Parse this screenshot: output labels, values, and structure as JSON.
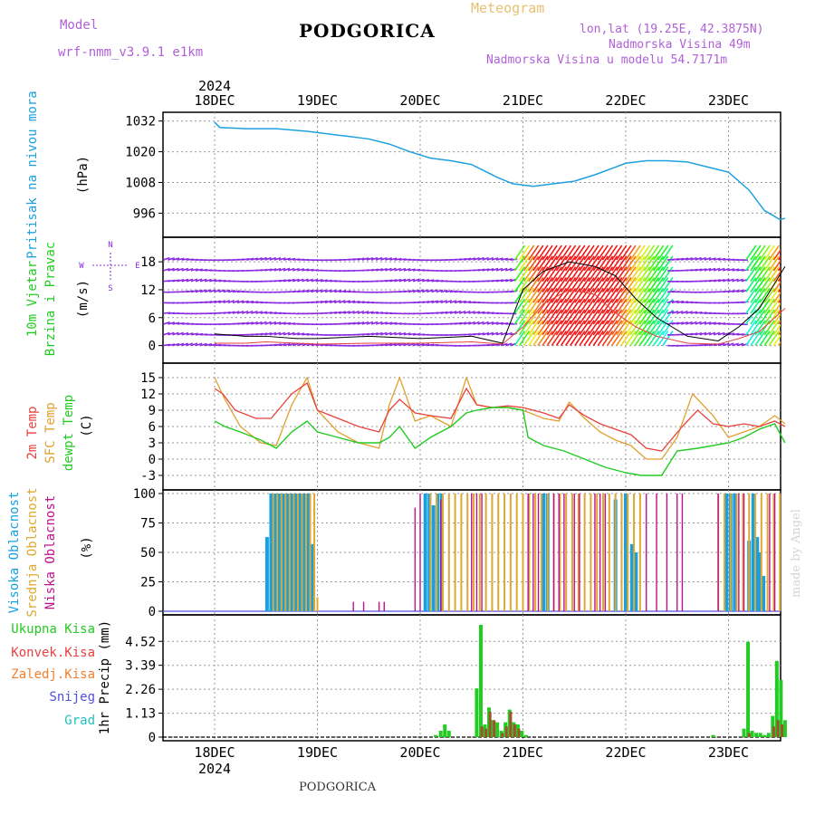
{
  "header": {
    "model_label": "Model",
    "model_name": "wrf-nmm_v3.9.1 e1km",
    "station_title": "PODGORICA",
    "product": "Meteogram",
    "lonlat": "lon,lat (19.25E, 42.3875N)",
    "elevation": "Nadmorska Visina 49m",
    "model_elevation": "Nadmorska Visina u modelu 54.7171m"
  },
  "footer_station": "PODGORICA",
  "watermark": "made by Angel",
  "colors": {
    "pressure": "#1ea0e0",
    "temp2m": "#e8413c",
    "sfc": "#e0a030",
    "dewpt": "#22cc22",
    "high_cloud": "#18a0e0",
    "mid_cloud": "#e0a830",
    "low_cloud": "#c0108c",
    "total_precip": "#22cc22",
    "conv_precip": "#e84040",
    "frozen": "#f08030",
    "snow": "#5050e0",
    "hail": "#22c0c0",
    "wind_purple": "#8a2be2"
  },
  "time_axis": {
    "year": "2024",
    "days": [
      "18DEC",
      "19DEC",
      "20DEC",
      "21DEC",
      "22DEC",
      "23DEC"
    ]
  },
  "chart_data": [
    {
      "type": "line",
      "name": "pressure",
      "ylabel_lines": [
        "Pritisak na nivou mora",
        "(hPa)"
      ],
      "yticks": [
        996,
        1008,
        1020,
        1032
      ],
      "ylim": [
        988,
        1034
      ],
      "series": [
        {
          "name": "Pritisak na nivou mora",
          "x": [
            0,
            0.05,
            0.3,
            0.45,
            0.6,
            0.9,
            1.0,
            1.2,
            1.5,
            1.7,
            1.9,
            2.1,
            2.3,
            2.5,
            2.6,
            2.75,
            2.9,
            3.1,
            3.3,
            3.5,
            3.7,
            3.9,
            4.0,
            4.2,
            4.4,
            4.6,
            4.8,
            5.0,
            5.2,
            5.35,
            5.5,
            5.55
          ],
          "y": [
            1031.5,
            1029.5,
            1029,
            1029,
            1029,
            1028,
            1027.5,
            1026.5,
            1025,
            1023,
            1020,
            1017.5,
            1016.5,
            1015,
            1013,
            1010,
            1007.5,
            1006.5,
            1007.5,
            1008.5,
            1011,
            1014,
            1015.5,
            1016.5,
            1016.5,
            1016,
            1014,
            1012,
            1005,
            997,
            993.5,
            994
          ]
        }
      ]
    },
    {
      "type": "scatter",
      "name": "wind",
      "ylabel_lines": [
        "10m Vjetar",
        "Brzina i Pravac",
        "(m/s)"
      ],
      "compass": [
        "N",
        "E",
        "S",
        "W"
      ],
      "yticks": [
        0,
        6,
        12,
        18
      ],
      "ylim": [
        -3,
        22.5
      ],
      "series": [
        {
          "name": "wind speed",
          "x": [
            0,
            0.3,
            0.5,
            0.8,
            1.0,
            1.5,
            2.0,
            2.5,
            2.8,
            3.0,
            3.2,
            3.45,
            3.7,
            3.9,
            4.1,
            4.3,
            4.6,
            4.9,
            5.1,
            5.3,
            5.55
          ],
          "y": [
            2.5,
            2,
            2,
            1.5,
            1.5,
            2,
            1.5,
            2,
            0.5,
            12,
            16,
            18,
            17,
            15,
            10,
            6,
            2,
            1,
            4,
            8,
            17
          ]
        },
        {
          "name": "wind gust",
          "x": [
            0,
            0.3,
            0.5,
            0.8,
            1.0,
            1.5,
            2.0,
            2.5,
            2.8,
            3.0,
            3.2,
            3.45,
            3.7,
            3.9,
            4.1,
            4.3,
            4.6,
            4.9,
            5.1,
            5.3,
            5.55
          ],
          "y": [
            0.5,
            0.5,
            0.8,
            0.5,
            0.3,
            0.5,
            0.5,
            0.8,
            0.3,
            4,
            9,
            12,
            11,
            7,
            4,
            2,
            0.5,
            0.3,
            1.5,
            3,
            8
          ]
        }
      ]
    },
    {
      "type": "line",
      "name": "temperature",
      "ylabel_lines": [
        "2m Temp",
        "SFC Temp",
        "dewpt Temp",
        "(C)"
      ],
      "yticks": [
        -3,
        0,
        3,
        6,
        9,
        12,
        15
      ],
      "ylim": [
        -5,
        17
      ],
      "series": [
        {
          "name": "2m Temp",
          "x": [
            0,
            0.08,
            0.2,
            0.4,
            0.55,
            0.75,
            0.9,
            1.0,
            1.2,
            1.4,
            1.6,
            1.7,
            1.8,
            1.95,
            2.1,
            2.3,
            2.45,
            2.55,
            2.7,
            2.85,
            3.0,
            3.2,
            3.35,
            3.45,
            3.6,
            3.75,
            3.9,
            4.05,
            4.2,
            4.35,
            4.55,
            4.7,
            4.85,
            5.0,
            5.15,
            5.3,
            5.45,
            5.55
          ],
          "y": [
            13,
            12,
            9,
            7.5,
            7.5,
            12,
            14,
            9,
            7.5,
            6,
            5,
            9,
            11,
            8.5,
            8,
            7.5,
            13,
            10,
            9.5,
            9.8,
            9.5,
            8.5,
            7.5,
            10,
            8,
            6.5,
            5.5,
            4.5,
            2,
            1.5,
            6,
            9,
            6.5,
            6,
            6.5,
            6,
            7,
            6
          ]
        },
        {
          "name": "SFC Temp",
          "x": [
            0,
            0.1,
            0.25,
            0.45,
            0.6,
            0.75,
            0.9,
            1.0,
            1.2,
            1.4,
            1.6,
            1.7,
            1.8,
            1.95,
            2.1,
            2.3,
            2.45,
            2.55,
            2.7,
            2.85,
            3.0,
            3.2,
            3.35,
            3.45,
            3.6,
            3.75,
            3.9,
            4.05,
            4.2,
            4.35,
            4.5,
            4.65,
            4.85,
            5.0,
            5.15,
            5.3,
            5.45,
            5.55
          ],
          "y": [
            15,
            11,
            6,
            3,
            2.5,
            10,
            15,
            9,
            5,
            3,
            2,
            10,
            15,
            7,
            8,
            6,
            15,
            10,
            9.5,
            9.5,
            9,
            7.5,
            7,
            10.5,
            7.5,
            5,
            3.5,
            2.5,
            0,
            0,
            4,
            12,
            8,
            4,
            5,
            6,
            8,
            6.5
          ]
        },
        {
          "name": "dewpt Temp",
          "x": [
            0,
            0.1,
            0.25,
            0.45,
            0.6,
            0.75,
            0.9,
            1.0,
            1.2,
            1.4,
            1.6,
            1.7,
            1.8,
            1.95,
            2.1,
            2.3,
            2.45,
            2.55,
            2.7,
            2.85,
            3.0,
            3.05,
            3.2,
            3.4,
            3.6,
            3.8,
            4.0,
            4.15,
            4.25,
            4.35,
            4.5,
            4.7,
            4.85,
            5.0,
            5.15,
            5.3,
            5.45,
            5.55
          ],
          "y": [
            7,
            6,
            5,
            3.5,
            2,
            5,
            7,
            5,
            4,
            3,
            3,
            4,
            6,
            2,
            4,
            6,
            8.5,
            9,
            9.5,
            9.5,
            9,
            4,
            2.5,
            1.5,
            0,
            -1.5,
            -2.5,
            -3,
            -3,
            -3,
            1.5,
            2,
            2.5,
            3,
            4,
            5.5,
            6.5,
            3
          ]
        }
      ]
    },
    {
      "type": "bar",
      "name": "cloud",
      "ylabel_lines": [
        "Visoka Oblacnost",
        "Srednja Oblacnost",
        "Niska Oblacnost",
        "(%)"
      ],
      "yticks": [
        0,
        25,
        50,
        75,
        100
      ],
      "ylim": [
        0,
        100
      ],
      "series": [
        {
          "name": "Visoka Oblacnost",
          "x": [
            0.51,
            0.55,
            0.59,
            0.63,
            0.67,
            0.71,
            0.75,
            0.79,
            0.83,
            0.87,
            0.91,
            0.95,
            2.05,
            2.09,
            2.13,
            2.17,
            2.21,
            3.2,
            3.24,
            3.9,
            4.0,
            4.06,
            4.1,
            4.98,
            5.02,
            5.06,
            5.2,
            5.24,
            5.28,
            5.3,
            5.34
          ],
          "y": [
            63,
            100,
            100,
            100,
            100,
            100,
            100,
            100,
            100,
            100,
            100,
            57,
            100,
            100,
            90,
            100,
            100,
            100,
            100,
            95,
            100,
            57,
            50,
            100,
            100,
            100,
            60,
            100,
            63,
            50,
            30
          ]
        },
        {
          "name": "Srednja Oblacnost",
          "x": [
            0.57,
            0.61,
            0.65,
            0.69,
            0.73,
            0.77,
            0.81,
            0.85,
            0.89,
            0.93,
            0.97,
            1.0,
            2.1,
            2.16,
            2.22,
            2.28,
            2.34,
            2.4,
            2.46,
            2.52,
            2.58,
            2.64,
            2.7,
            2.76,
            2.82,
            2.88,
            2.94,
            3.0,
            3.06,
            3.12,
            3.18,
            3.24,
            3.3,
            3.36,
            3.42,
            3.48,
            3.54,
            3.6,
            3.66,
            3.72,
            3.78,
            3.84,
            3.9,
            3.96,
            4.02,
            4.08,
            4.14,
            4.9,
            4.96,
            5.02,
            5.08,
            5.14,
            5.2,
            5.26,
            5.32,
            5.38,
            5.44,
            5.5
          ],
          "y": [
            100,
            100,
            100,
            100,
            100,
            100,
            100,
            100,
            100,
            100,
            100,
            12,
            100,
            100,
            100,
            100,
            100,
            100,
            100,
            100,
            100,
            100,
            100,
            100,
            100,
            100,
            100,
            100,
            100,
            100,
            100,
            100,
            100,
            100,
            100,
            100,
            100,
            100,
            100,
            100,
            100,
            100,
            100,
            100,
            100,
            100,
            100,
            100,
            100,
            100,
            100,
            100,
            100,
            100,
            100,
            100,
            100,
            100
          ]
        },
        {
          "name": "Niska Oblacnost",
          "x": [
            1.35,
            1.45,
            1.6,
            1.65,
            1.95,
            2.0,
            2.2,
            2.5,
            2.55,
            2.6,
            3.05,
            3.1,
            3.15,
            3.3,
            3.35,
            3.4,
            3.5,
            3.55,
            3.7,
            3.75,
            3.8,
            4.2,
            4.3,
            4.4,
            4.5,
            4.55,
            4.9,
            5.1,
            5.15,
            5.4,
            5.45
          ],
          "y": [
            8,
            8,
            8,
            8,
            88,
            100,
            95,
            100,
            100,
            100,
            100,
            100,
            100,
            100,
            100,
            100,
            100,
            100,
            100,
            100,
            100,
            100,
            100,
            100,
            100,
            100,
            100,
            100,
            100,
            100,
            100
          ]
        }
      ]
    },
    {
      "type": "bar",
      "name": "precipitation",
      "ylabel_lines": [
        "1hr Precip (mm)"
      ],
      "legend": [
        "Ukupna Kisa",
        "Konvek.Kisa",
        "Zaledj.Kisa",
        "Snijeg",
        "Grad"
      ],
      "yticks": [
        0,
        1.13,
        2.26,
        3.39,
        4.52
      ],
      "ylim": [
        0,
        5.6
      ],
      "series": [
        {
          "name": "Ukupna Kisa",
          "x": [
            2.15,
            2.2,
            2.24,
            2.28,
            2.55,
            2.59,
            2.63,
            2.67,
            2.71,
            2.75,
            2.79,
            2.83,
            2.87,
            2.91,
            2.95,
            2.99,
            3.03,
            4.85,
            5.15,
            5.19,
            5.23,
            5.27,
            5.31,
            5.35,
            5.39,
            5.43,
            5.47,
            5.51,
            5.55
          ],
          "y": [
            0.1,
            0.3,
            0.6,
            0.3,
            2.3,
            5.3,
            0.6,
            1.4,
            0.8,
            0.7,
            0.3,
            0.7,
            1.3,
            0.7,
            0.6,
            0.3,
            0.1,
            0.1,
            0.4,
            4.5,
            0.3,
            0.2,
            0.2,
            0.1,
            0.2,
            1.0,
            3.6,
            2.7,
            0.8
          ]
        },
        {
          "name": "Konvek.Kisa",
          "x": [
            2.6,
            2.64,
            2.68,
            2.72,
            2.8,
            2.84,
            2.88,
            2.92,
            2.96,
            5.2,
            5.44,
            5.48,
            5.52
          ],
          "y": [
            0.5,
            0.4,
            1.2,
            0.8,
            0.2,
            0.5,
            1.2,
            0.6,
            0.4,
            0.2,
            0.5,
            0.8,
            0.6
          ]
        }
      ]
    }
  ]
}
